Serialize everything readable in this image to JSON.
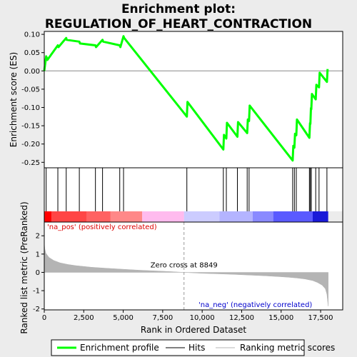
{
  "chart_data": {
    "title_line1": "Enrichment plot:",
    "title_line2": "REGULATION_OF_HEART_CONTRACTION",
    "panels": [
      {
        "type": "line",
        "name": "enrichment-profile",
        "ylabel": "Enrichment score (ES)",
        "ylim": [
          -0.265,
          0.108
        ],
        "yticks": [
          0.1,
          0.05,
          0.0,
          -0.05,
          -0.1,
          -0.15,
          -0.2,
          -0.25
        ],
        "ytick_labels": [
          "0.10",
          "0.05",
          "0.00",
          "-0.05",
          "-0.10",
          "-0.15",
          "-0.20",
          "-0.25"
        ],
        "xlim": [
          0,
          18900
        ],
        "series": {
          "x": [
            0,
            120,
            200,
            860,
            900,
            1390,
            1420,
            2220,
            2260,
            3240,
            3280,
            3690,
            3730,
            4780,
            4820,
            5020,
            5060,
            9030,
            9070,
            11340,
            11380,
            11530,
            11570,
            12230,
            12270,
            12850,
            12890,
            12970,
            13010,
            15730,
            15770,
            15840,
            15880,
            15960,
            16000,
            16790,
            16830,
            16850,
            16890,
            16910,
            16950,
            17190,
            17230,
            17400,
            17440,
            17900,
            17940
          ],
          "y": [
            0.0,
            0.04,
            0.03,
            0.07,
            0.065,
            0.09,
            0.085,
            0.08,
            0.075,
            0.07,
            0.065,
            0.085,
            0.08,
            0.07,
            0.065,
            0.095,
            0.09,
            -0.125,
            -0.085,
            -0.215,
            -0.175,
            -0.185,
            -0.142,
            -0.18,
            -0.14,
            -0.17,
            -0.133,
            -0.137,
            -0.095,
            -0.245,
            -0.205,
            -0.21,
            -0.172,
            -0.176,
            -0.133,
            -0.183,
            -0.143,
            -0.145,
            -0.102,
            -0.105,
            -0.063,
            -0.078,
            -0.038,
            -0.045,
            -0.005,
            -0.03,
            0.005
          ],
          "color": "#00ff00",
          "name": "Enrichment profile"
        }
      },
      {
        "type": "hits",
        "name": "hits",
        "hits": [
          120,
          860,
          1390,
          2220,
          3240,
          3690,
          4780,
          5020,
          9030,
          11340,
          11530,
          12230,
          12850,
          12970,
          15730,
          15840,
          15960,
          16790,
          16850,
          16910,
          17190,
          17400,
          17900
        ],
        "color": "#000000"
      },
      {
        "type": "heatmap",
        "name": "rank-color-bar",
        "segments": [
          {
            "from": 0,
            "to": 450,
            "color": "#ff0000"
          },
          {
            "from": 450,
            "to": 2700,
            "color": "#ff4545"
          },
          {
            "from": 2700,
            "to": 4200,
            "color": "#ff6262"
          },
          {
            "from": 4200,
            "to": 6200,
            "color": "#ff8888"
          },
          {
            "from": 6200,
            "to": 8849,
            "color": "#ffbbee"
          },
          {
            "from": 8849,
            "to": 11100,
            "color": "#ccccff"
          },
          {
            "from": 11100,
            "to": 13200,
            "color": "#b4b4ff"
          },
          {
            "from": 13200,
            "to": 14500,
            "color": "#8a8aff"
          },
          {
            "from": 14500,
            "to": 17000,
            "color": "#5a5aff"
          },
          {
            "from": 17000,
            "to": 17980,
            "color": "#1a1ad8"
          }
        ]
      },
      {
        "type": "area",
        "name": "ranked-metric",
        "ylabel": "Ranked list metric (PreRanked)",
        "xlabel": "Rank in Ordered Dataset",
        "ylim": [
          -2.05,
          2.75
        ],
        "yticks": [
          2,
          1,
          0,
          -1,
          -2
        ],
        "ytick_labels": [
          "2",
          "1",
          "0",
          "-1",
          "-2"
        ],
        "xticks": [
          0,
          2500,
          5000,
          7500,
          10000,
          12500,
          15000,
          17500
        ],
        "xtick_labels": [
          "0",
          "2,500",
          "5,000",
          "7,500",
          "10,000",
          "12,500",
          "15,000",
          "17,500"
        ],
        "x": [
          0,
          30,
          100,
          300,
          600,
          1000,
          1500,
          2000,
          3000,
          4000,
          5000,
          6000,
          7000,
          8000,
          8849,
          10000,
          11000,
          12000,
          13000,
          14000,
          15000,
          15500,
          16000,
          16500,
          17000,
          17300,
          17600,
          17800,
          17900,
          17980
        ],
        "y": [
          1.6,
          1.3,
          1.05,
          0.82,
          0.65,
          0.52,
          0.43,
          0.37,
          0.28,
          0.22,
          0.17,
          0.12,
          0.08,
          0.04,
          0.0,
          -0.05,
          -0.08,
          -0.11,
          -0.15,
          -0.19,
          -0.24,
          -0.27,
          -0.31,
          -0.36,
          -0.45,
          -0.55,
          -0.7,
          -0.9,
          -1.2,
          -1.85
        ],
        "fill": "#b4b4b4",
        "zero_cross_label": "Zero cross at 8849",
        "zero_cross": 8849,
        "pos_label": "'na_pos' (positively correlated)",
        "neg_label": "'na_neg' (negatively correlated)"
      }
    ],
    "legend": {
      "placement": "bottom",
      "items": [
        {
          "label": "Enrichment profile",
          "color": "#00ff00",
          "kind": "line-thick"
        },
        {
          "label": "Hits",
          "color": "#000000",
          "kind": "line"
        },
        {
          "label": "Ranking metric scores",
          "color": "#b4b4b4",
          "kind": "line"
        }
      ]
    }
  }
}
